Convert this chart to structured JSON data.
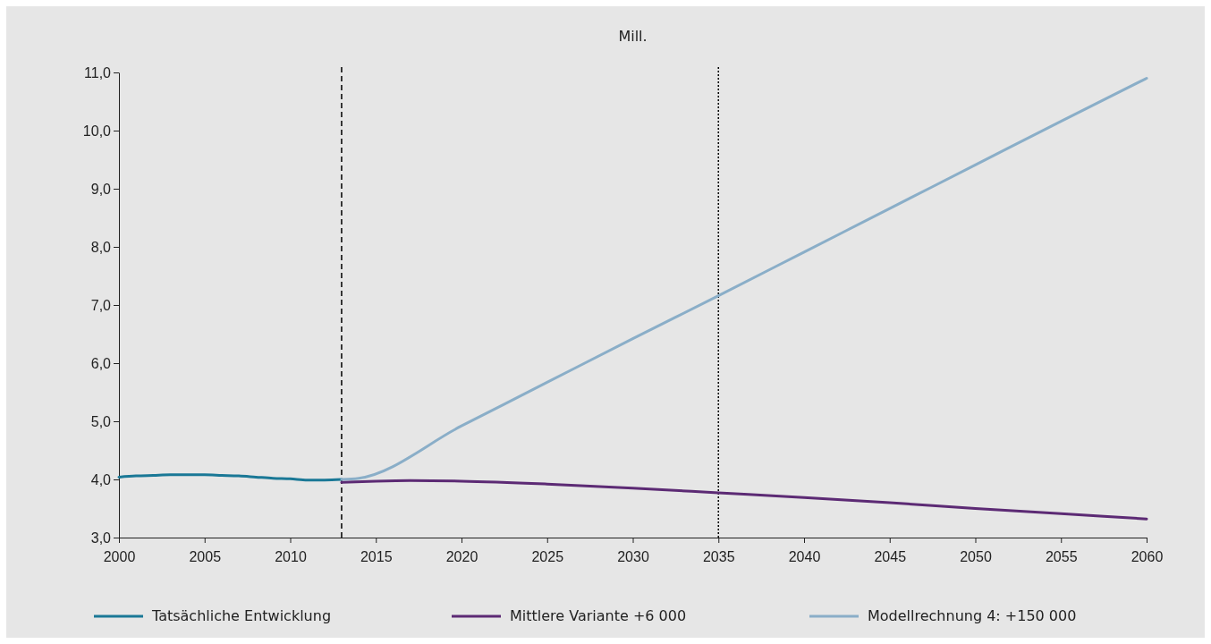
{
  "chart_data": {
    "type": "line",
    "ylabel": "Mill.",
    "xlim": [
      2000,
      2060
    ],
    "xticks": [
      2000,
      2005,
      2010,
      2015,
      2020,
      2025,
      2030,
      2035,
      2040,
      2045,
      2050,
      2055,
      2060
    ],
    "ylim": [
      3,
      11
    ],
    "yticks": [
      {
        "value": 3,
        "label": "3,0"
      },
      {
        "value": 4,
        "label": "4,0"
      },
      {
        "value": 5,
        "label": "5,0"
      },
      {
        "value": 6,
        "label": "6,0"
      },
      {
        "value": 7,
        "label": "7,0"
      },
      {
        "value": 8,
        "label": "8,0"
      },
      {
        "value": 9,
        "label": "9,0"
      },
      {
        "value": 10,
        "label": "10,0"
      },
      {
        "value": 11,
        "label": "11,0"
      }
    ],
    "grid": false,
    "legend": "bottom",
    "line_style": "solid",
    "marker": "none",
    "series": [
      {
        "name": "Tatsächliche Entwicklung",
        "color": "#1a7896",
        "x": [
          2000,
          2001,
          2002,
          2003,
          2004,
          2005,
          2006,
          2007,
          2008,
          2009,
          2010,
          2011,
          2012,
          2013
        ],
        "values": [
          4.04,
          4.06,
          4.07,
          4.08,
          4.08,
          4.08,
          4.07,
          4.06,
          4.04,
          4.02,
          4.01,
          3.99,
          3.99,
          4.0
        ]
      },
      {
        "name": "Mittlere Variante +6 000",
        "color": "#5c2a74",
        "x": [
          2013,
          2015,
          2017,
          2020,
          2025,
          2030,
          2035,
          2040,
          2045,
          2050,
          2055,
          2060
        ],
        "values": [
          3.95,
          3.97,
          3.98,
          3.97,
          3.92,
          3.85,
          3.77,
          3.69,
          3.6,
          3.5,
          3.41,
          3.32
        ]
      },
      {
        "name": "Modellrechnung 4: +150 000",
        "color": "#8aaec8",
        "x": [
          2013,
          2014,
          2020,
          2025,
          2030,
          2035,
          2040,
          2045,
          2050,
          2055,
          2060
        ],
        "values": [
          4.0,
          4.02,
          4.92,
          5.67,
          6.42,
          7.16,
          7.91,
          8.66,
          9.41,
          10.16,
          10.9
        ]
      }
    ],
    "ref_lines": [
      {
        "axis": "x",
        "value": 2013,
        "color": "#000000",
        "line_style": "dashed"
      },
      {
        "axis": "x",
        "value": 2035,
        "color": "#000000",
        "line_style": "dotted"
      }
    ]
  }
}
